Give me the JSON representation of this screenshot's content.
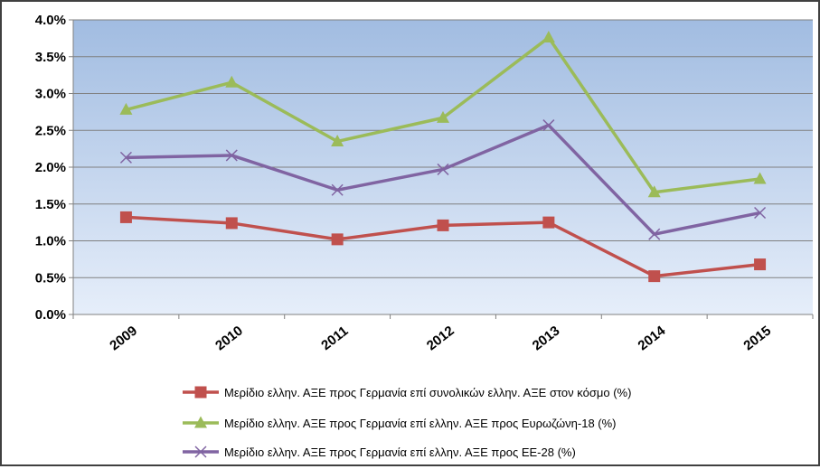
{
  "chart_data": {
    "type": "line",
    "title": "",
    "xlabel": "",
    "ylabel": "",
    "categories": [
      "2009",
      "2010",
      "2011",
      "2012",
      "2013",
      "2014",
      "2015"
    ],
    "ylim": [
      0,
      4.0
    ],
    "yticks": [
      "0.0%",
      "0.5%",
      "1.0%",
      "1.5%",
      "2.0%",
      "2.5%",
      "3.0%",
      "3.5%",
      "4.0%"
    ],
    "grid": true,
    "legend_position": "bottom",
    "series": [
      {
        "name": "Μερίδιο ελλην. ΑΞΕ προς Γερμανία επί συνολικών ελλην. ΑΞΕ στον κόσμο (%)",
        "color": "#c0504d",
        "marker": "square",
        "values": [
          1.32,
          1.24,
          1.02,
          1.21,
          1.25,
          0.52,
          0.68
        ]
      },
      {
        "name": "Μερίδιο ελλην. ΑΞΕ προς Γερμανία επί ελλην. ΑΞΕ προς Ευρωζώνη-18 (%)",
        "color": "#9bbb59",
        "marker": "triangle",
        "values": [
          2.78,
          3.15,
          2.35,
          2.67,
          3.76,
          1.66,
          1.84
        ]
      },
      {
        "name": "Μερίδιο ελλην. ΑΞΕ προς Γερμανία επί ελλην. ΑΞΕ προς ΕΕ-28 (%)",
        "color": "#8064a2",
        "marker": "x",
        "values": [
          2.13,
          2.16,
          1.69,
          1.97,
          2.57,
          1.09,
          1.38
        ]
      }
    ]
  }
}
